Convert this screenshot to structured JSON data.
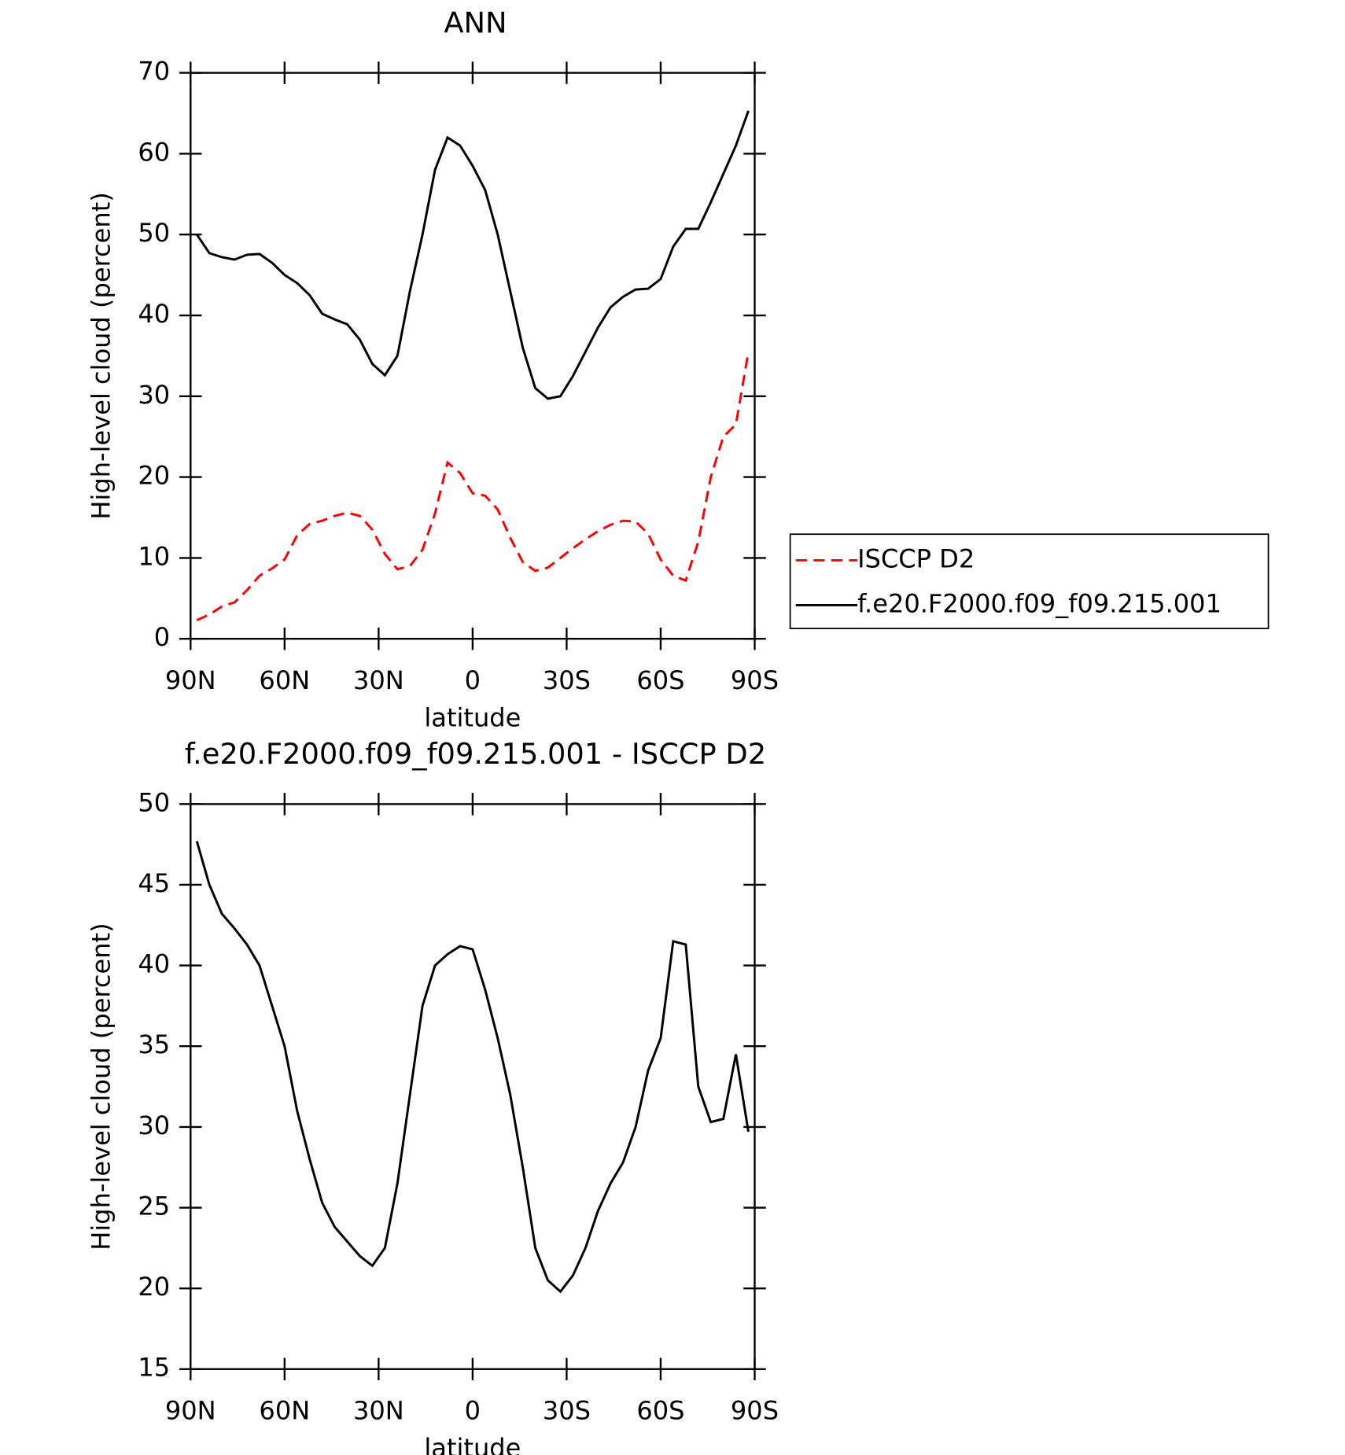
{
  "chart_data": [
    {
      "type": "line",
      "title": "ANN",
      "x_label": "latitude",
      "y_label": "High-level cloud (percent)",
      "x": [
        88,
        84,
        80,
        76,
        72,
        68,
        64,
        60,
        56,
        52,
        48,
        44,
        40,
        36,
        32,
        28,
        24,
        20,
        16,
        12,
        8,
        4,
        0,
        -4,
        -8,
        -12,
        -16,
        -20,
        -24,
        -28,
        -32,
        -36,
        -40,
        -44,
        -48,
        -52,
        -56,
        -60,
        -64,
        -68,
        -72,
        -76,
        -80,
        -84,
        -88
      ],
      "series": [
        {
          "name": "ISCCP D2",
          "color": "#ff0000",
          "dash": true,
          "values": [
            2.3,
            3.0,
            4.0,
            4.5,
            6.0,
            7.8,
            8.7,
            9.8,
            12.8,
            14.2,
            14.6,
            15.2,
            15.6,
            15.2,
            13.5,
            10.5,
            8.6,
            9.0,
            11.0,
            15.5,
            21.8,
            20.5,
            18.0,
            17.7,
            16.0,
            12.5,
            9.5,
            8.4,
            8.8,
            10.0,
            11.2,
            12.3,
            13.3,
            14.1,
            14.6,
            14.5,
            13.0,
            9.8,
            7.8,
            7.2,
            12.0,
            20.0,
            25.0,
            26.5,
            35.5
          ]
        },
        {
          "name": "f.e20.F2000.f09_f09.215.001",
          "color": "#000000",
          "dash": false,
          "values": [
            50.0,
            47.7,
            47.2,
            46.9,
            47.5,
            47.6,
            46.5,
            45.0,
            44.0,
            42.5,
            40.2,
            39.5,
            38.9,
            37.0,
            34.0,
            32.6,
            35.0,
            43.0,
            50.0,
            58.0,
            62.0,
            61.0,
            58.5,
            55.5,
            50.0,
            43.0,
            36.0,
            31.0,
            29.7,
            30.0,
            32.5,
            35.5,
            38.5,
            41.0,
            42.3,
            43.2,
            43.3,
            44.5,
            48.5,
            50.7,
            50.7,
            54.0,
            57.5,
            61.0,
            65.3
          ]
        }
      ],
      "xlim": [
        90,
        -90
      ],
      "xticks": [
        {
          "value": 90,
          "label": "90N"
        },
        {
          "value": 60,
          "label": "60N"
        },
        {
          "value": 30,
          "label": "30N"
        },
        0,
        {
          "value": -30,
          "label": "30S"
        },
        {
          "value": -60,
          "label": "60S"
        },
        {
          "value": -90,
          "label": "90S"
        }
      ],
      "ylim": [
        0,
        70
      ],
      "yticks": [
        0,
        10,
        20,
        30,
        40,
        50,
        60,
        70
      ],
      "legend": "right"
    },
    {
      "type": "line",
      "title": "f.e20.F2000.f09_f09.215.001 - ISCCP D2",
      "x_label": "latitude",
      "y_label": "High-level cloud (percent)",
      "x": [
        88,
        84,
        80,
        76,
        72,
        68,
        64,
        60,
        56,
        52,
        48,
        44,
        40,
        36,
        32,
        28,
        24,
        20,
        16,
        12,
        8,
        4,
        0,
        -4,
        -8,
        -12,
        -16,
        -20,
        -24,
        -28,
        -32,
        -36,
        -40,
        -44,
        -48,
        -52,
        -56,
        -60,
        -64,
        -68,
        -72,
        -76,
        -80,
        -84,
        -88
      ],
      "series": [
        {
          "color": "#000000",
          "dash": false,
          "values": [
            47.7,
            45.0,
            43.2,
            42.3,
            41.3,
            40.0,
            37.5,
            35.0,
            31.0,
            28.0,
            25.3,
            23.8,
            22.9,
            22.0,
            21.4,
            22.5,
            26.5,
            32.0,
            37.5,
            40.0,
            40.7,
            41.2,
            41.0,
            38.5,
            35.5,
            32.0,
            27.5,
            22.5,
            20.5,
            19.8,
            20.8,
            22.5,
            24.8,
            26.5,
            27.8,
            30.0,
            33.5,
            35.5,
            41.5,
            41.3,
            32.5,
            30.3,
            30.5,
            34.5,
            29.7
          ]
        }
      ],
      "xlim": [
        90,
        -90
      ],
      "xticks": [
        {
          "value": 90,
          "label": "90N"
        },
        {
          "value": 60,
          "label": "60N"
        },
        {
          "value": 30,
          "label": "30N"
        },
        0,
        {
          "value": -30,
          "label": "30S"
        },
        {
          "value": -60,
          "label": "60S"
        },
        {
          "value": -90,
          "label": "90S"
        }
      ],
      "ylim": [
        15,
        50
      ],
      "yticks": [
        15,
        20,
        25,
        30,
        35,
        40,
        45,
        50
      ]
    }
  ]
}
